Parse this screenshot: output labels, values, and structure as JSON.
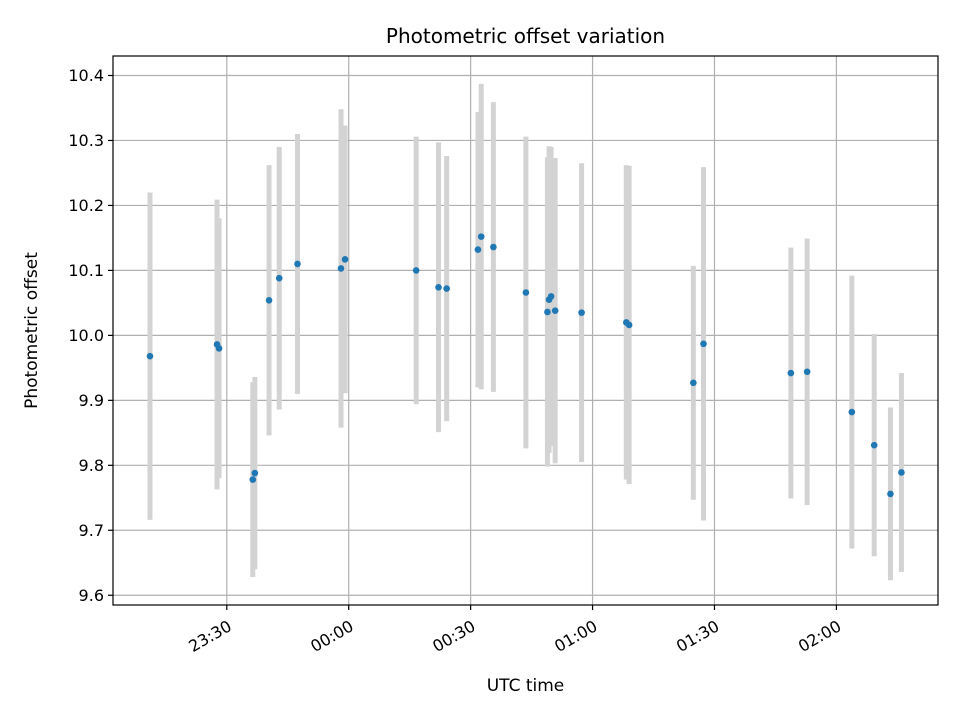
{
  "chart_data": {
    "type": "scatter",
    "title": "Photometric offset variation",
    "xlabel": "UTC time",
    "ylabel": "Photometric offset",
    "x_unit": "minutes",
    "xlim": [
      -28,
      175
    ],
    "ylim": [
      9.585,
      10.43
    ],
    "grid": true,
    "point_color": "#1f77b4",
    "errorbar_color": "#d3d3d3",
    "xticks": [
      {
        "value": 0,
        "label": "23:30"
      },
      {
        "value": 30,
        "label": "00:00"
      },
      {
        "value": 60,
        "label": "00:30"
      },
      {
        "value": 90,
        "label": "01:00"
      },
      {
        "value": 120,
        "label": "01:30"
      },
      {
        "value": 150,
        "label": "02:00"
      }
    ],
    "yticks": [
      9.6,
      9.7,
      9.8,
      9.9,
      10.0,
      10.1,
      10.2,
      10.3,
      10.4
    ],
    "ytick_labels": [
      "9.6",
      "9.7",
      "9.8",
      "9.9",
      "10.0",
      "10.1",
      "10.2",
      "10.3",
      "10.4"
    ],
    "series": [
      {
        "points": [
          {
            "x": -18.9,
            "y": 9.968,
            "yerr": 0.252
          },
          {
            "x": -2.4,
            "y": 9.986,
            "yerr": 0.223
          },
          {
            "x": -1.9,
            "y": 9.98,
            "yerr": 0.2
          },
          {
            "x": 6.4,
            "y": 9.778,
            "yerr": 0.15
          },
          {
            "x": 6.9,
            "y": 9.788,
            "yerr": 0.148
          },
          {
            "x": 10.4,
            "y": 10.054,
            "yerr": 0.208
          },
          {
            "x": 12.9,
            "y": 10.088,
            "yerr": 0.202
          },
          {
            "x": 17.4,
            "y": 10.11,
            "yerr": 0.2
          },
          {
            "x": 28.1,
            "y": 10.103,
            "yerr": 0.245
          },
          {
            "x": 29.1,
            "y": 10.117,
            "yerr": 0.206
          },
          {
            "x": 46.6,
            "y": 10.1,
            "yerr": 0.206
          },
          {
            "x": 52.1,
            "y": 10.074,
            "yerr": 0.223
          },
          {
            "x": 54.1,
            "y": 10.072,
            "yerr": 0.204
          },
          {
            "x": 61.8,
            "y": 10.132,
            "yerr": 0.212
          },
          {
            "x": 62.6,
            "y": 10.152,
            "yerr": 0.235
          },
          {
            "x": 65.6,
            "y": 10.136,
            "yerr": 0.223
          },
          {
            "x": 73.6,
            "y": 10.066,
            "yerr": 0.24
          },
          {
            "x": 78.9,
            "y": 10.036,
            "yerr": 0.238
          },
          {
            "x": 79.3,
            "y": 10.055,
            "yerr": 0.236
          },
          {
            "x": 79.8,
            "y": 10.06,
            "yerr": 0.23
          },
          {
            "x": 80.8,
            "y": 10.038,
            "yerr": 0.235
          },
          {
            "x": 87.3,
            "y": 10.035,
            "yerr": 0.23
          },
          {
            "x": 98.3,
            "y": 10.02,
            "yerr": 0.242
          },
          {
            "x": 99.0,
            "y": 10.016,
            "yerr": 0.245
          },
          {
            "x": 114.8,
            "y": 9.927,
            "yerr": 0.18
          },
          {
            "x": 117.3,
            "y": 9.987,
            "yerr": 0.272
          },
          {
            "x": 138.8,
            "y": 9.942,
            "yerr": 0.193
          },
          {
            "x": 142.8,
            "y": 9.944,
            "yerr": 0.205
          },
          {
            "x": 153.8,
            "y": 9.882,
            "yerr": 0.21
          },
          {
            "x": 159.3,
            "y": 9.831,
            "yerr": 0.171
          },
          {
            "x": 163.3,
            "y": 9.756,
            "yerr": 0.133
          },
          {
            "x": 166.0,
            "y": 9.789,
            "yerr": 0.153
          }
        ]
      }
    ]
  }
}
